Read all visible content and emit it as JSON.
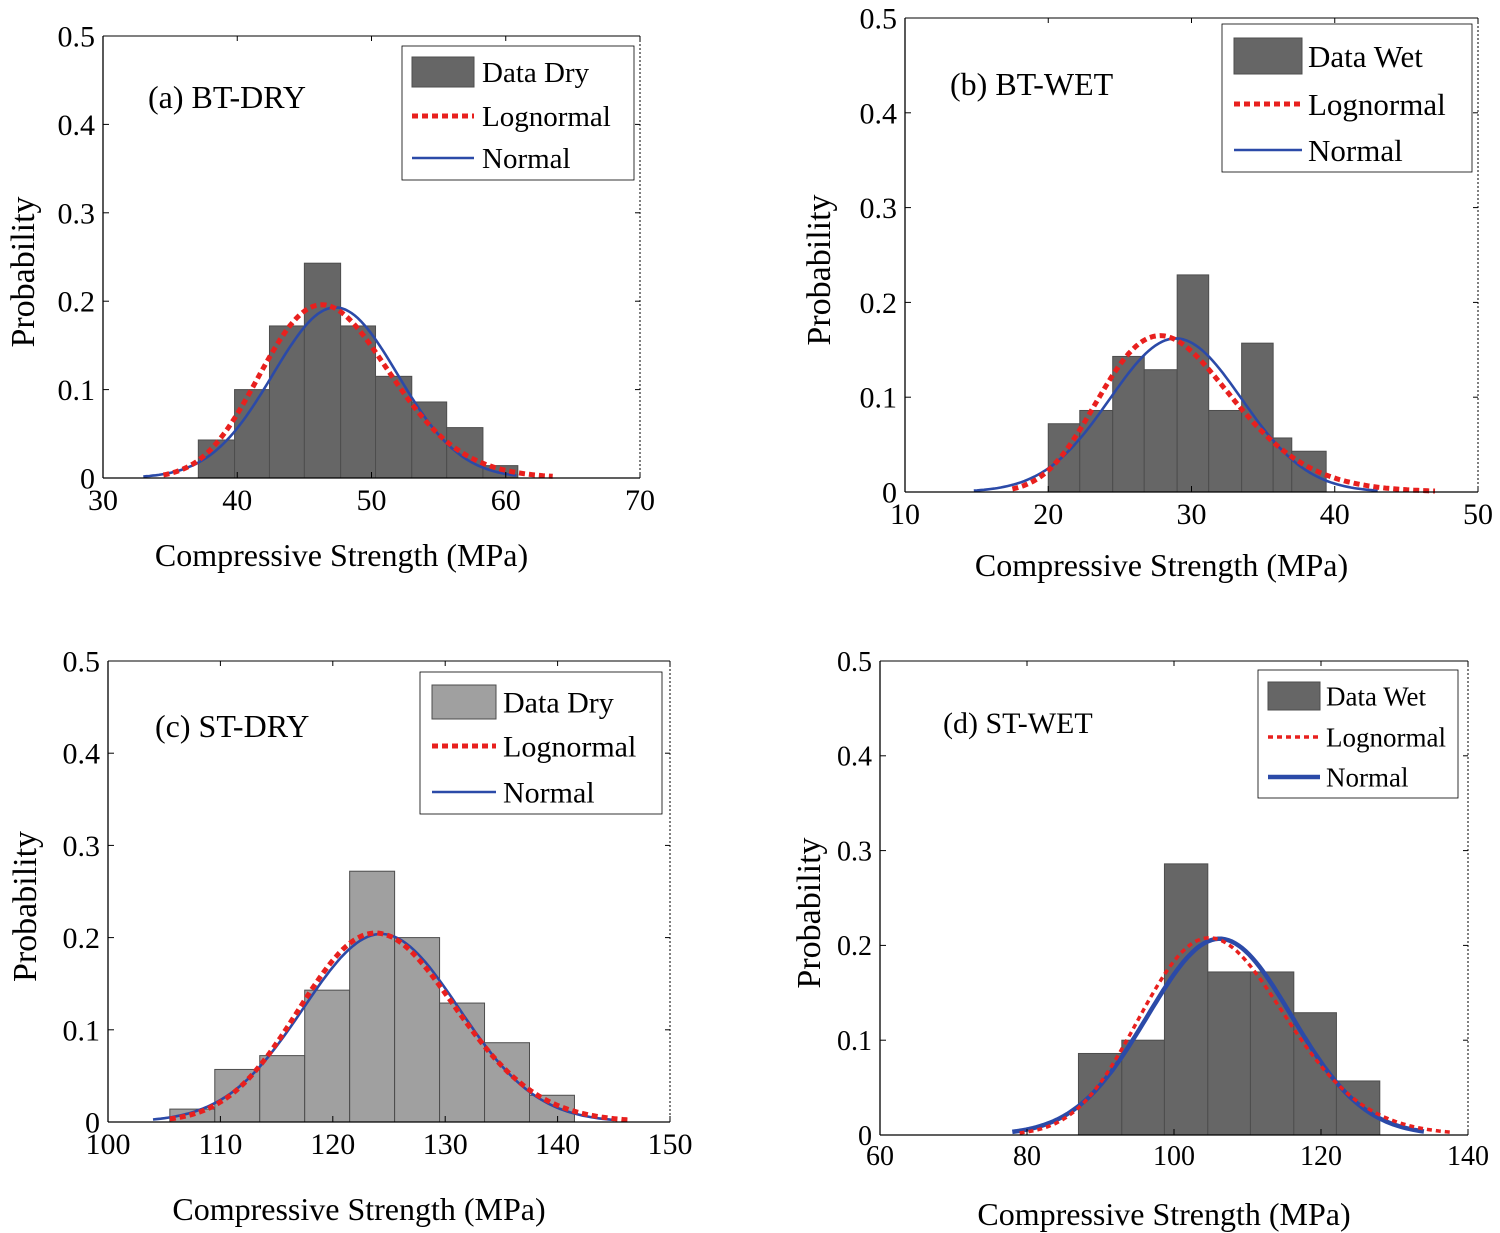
{
  "chart_data": [
    {
      "type": "bar",
      "panel_label": "(a) BT-DRY",
      "xlabel": "Compressive Strength (MPa)",
      "ylabel": "Probability",
      "xlim": [
        30,
        70
      ],
      "ylim": [
        0,
        0.5
      ],
      "xticks": [
        30,
        40,
        50,
        60,
        70
      ],
      "yticks": [
        0,
        0.1,
        0.2,
        0.3,
        0.4,
        0.5
      ],
      "bin_edges": [
        37.1,
        39.8,
        42.4,
        45.0,
        47.7,
        50.3,
        53.0,
        55.6,
        58.3,
        60.9
      ],
      "values": [
        0.043,
        0.1,
        0.172,
        0.243,
        0.172,
        0.115,
        0.086,
        0.057,
        0.014
      ],
      "bar_color": "#666666",
      "normal_fit": {
        "mean": 47.3,
        "std": 4.65,
        "xrange": [
          33,
          60.8
        ],
        "peak": 0.193
      },
      "lognormal_fit": {
        "mean": 46.3,
        "std": 4.8,
        "xrange": [
          34.5,
          63.5
        ],
        "peak": 0.196
      },
      "legend": [
        "Data Dry",
        "Lognormal",
        "Normal"
      ],
      "legend_position": "top-right"
    },
    {
      "type": "bar",
      "panel_label": "(b) BT-WET",
      "xlabel": "Compressive Strength (MPa)",
      "ylabel": "Probability",
      "xlim": [
        10,
        50
      ],
      "ylim": [
        0,
        0.5
      ],
      "xticks": [
        10,
        20,
        30,
        40,
        50
      ],
      "yticks": [
        0,
        0.1,
        0.2,
        0.3,
        0.4,
        0.5
      ],
      "bin_edges": [
        20.0,
        22.2,
        24.5,
        26.7,
        29.0,
        31.2,
        33.5,
        35.7,
        37.0,
        39.4
      ],
      "values": [
        0.072,
        0.086,
        0.143,
        0.129,
        0.229,
        0.086,
        0.157,
        0.057,
        0.043
      ],
      "bar_color": "#666666",
      "normal_fit": {
        "mean": 28.9,
        "std": 4.6,
        "xrange": [
          14.8,
          43
        ],
        "peak": 0.162
      },
      "lognormal_fit": {
        "mean": 27.8,
        "std": 4.6,
        "xrange": [
          17.5,
          47
        ],
        "peak": 0.165
      },
      "legend": [
        "Data Wet",
        "Lognormal",
        "Normal"
      ],
      "legend_position": "top-right"
    },
    {
      "type": "bar",
      "panel_label": "(c) ST-DRY",
      "xlabel": "Compressive Strength (MPa)",
      "ylabel": "Probability",
      "xlim": [
        100,
        150
      ],
      "ylim": [
        0,
        0.5
      ],
      "xticks": [
        100,
        110,
        120,
        130,
        140,
        150
      ],
      "yticks": [
        0,
        0.1,
        0.2,
        0.3,
        0.4,
        0.5
      ],
      "bin_edges": [
        105.5,
        109.5,
        113.5,
        117.5,
        121.5,
        125.5,
        129.5,
        133.5,
        137.5,
        141.5
      ],
      "values": [
        0.014,
        0.057,
        0.072,
        0.143,
        0.272,
        0.2,
        0.129,
        0.086,
        0.029
      ],
      "bar_color": "#a0a0a0",
      "normal_fit": {
        "mean": 124.3,
        "std": 6.9,
        "xrange": [
          104,
          145
        ],
        "peak": 0.204
      },
      "lognormal_fit": {
        "mean": 123.8,
        "std": 6.9,
        "xrange": [
          105.5,
          146.5
        ],
        "peak": 0.205
      },
      "legend": [
        "Data Dry",
        "Lognormal",
        "Normal"
      ],
      "legend_position": "top-right"
    },
    {
      "type": "bar",
      "panel_label": "(d) ST-WET",
      "xlabel": "Compressive Strength (MPa)",
      "ylabel": "Probability",
      "xlim": [
        60,
        140
      ],
      "ylim": [
        0,
        0.5
      ],
      "xticks": [
        60,
        80,
        100,
        120,
        140
      ],
      "yticks": [
        0,
        0.1,
        0.2,
        0.3,
        0.4,
        0.5
      ],
      "bin_edges": [
        87.0,
        92.9,
        98.7,
        104.6,
        110.4,
        116.3,
        122.1,
        128.0
      ],
      "values": [
        0.086,
        0.1,
        0.286,
        0.172,
        0.172,
        0.129,
        0.057
      ],
      "bar_color": "#666666",
      "normal_fit": {
        "mean": 106.2,
        "std": 9.8,
        "xrange": [
          78,
          134
        ],
        "peak": 0.207
      },
      "lognormal_fit": {
        "mean": 104.8,
        "std": 9.8,
        "xrange": [
          79,
          138
        ],
        "peak": 0.208
      },
      "legend": [
        "Data Wet",
        "Lognormal",
        "Normal"
      ],
      "legend_position": "top-right"
    }
  ],
  "colors": {
    "normal_line": "#2b4aa8",
    "lognormal_line": "#e8201e",
    "axis": "#000000",
    "bar_edge": "#4d4d4d"
  }
}
